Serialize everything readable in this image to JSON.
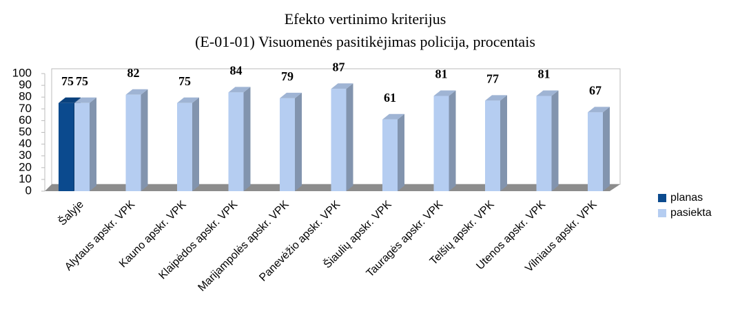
{
  "chart_data": {
    "type": "bar3d",
    "title": "Efekto vertinimo kriterijus",
    "subtitle": "(E-01-01) Visuomenės pasitikėjimas policija, procentais",
    "categories": [
      "Šalyje",
      "Alytaus apskr. VPK",
      "Kauno apskr. VPK",
      "Klaipėdos apskr. VPK",
      "Marijampolės apskr. VPK",
      "Panevėžio apskr. VPK",
      "Šiaulių apskr. VPK",
      "Tauragės apskr. VPK",
      "Telšių apskr. VPK",
      "Utenos apskr. VPK",
      "Vilniaus apskr. VPK"
    ],
    "series": [
      {
        "name": "planas",
        "color": "#0b4a8e",
        "values": [
          75,
          null,
          null,
          null,
          null,
          null,
          null,
          null,
          null,
          null,
          null
        ]
      },
      {
        "name": "pasiekta",
        "color": "#b5cdf1",
        "values": [
          75,
          82,
          75,
          84,
          79,
          87,
          61,
          81,
          77,
          81,
          67
        ]
      }
    ],
    "ylim": [
      0,
      100
    ],
    "yticks": [
      0,
      10,
      20,
      30,
      40,
      50,
      60,
      70,
      80,
      90,
      100
    ],
    "grid": false,
    "legend": "right"
  }
}
